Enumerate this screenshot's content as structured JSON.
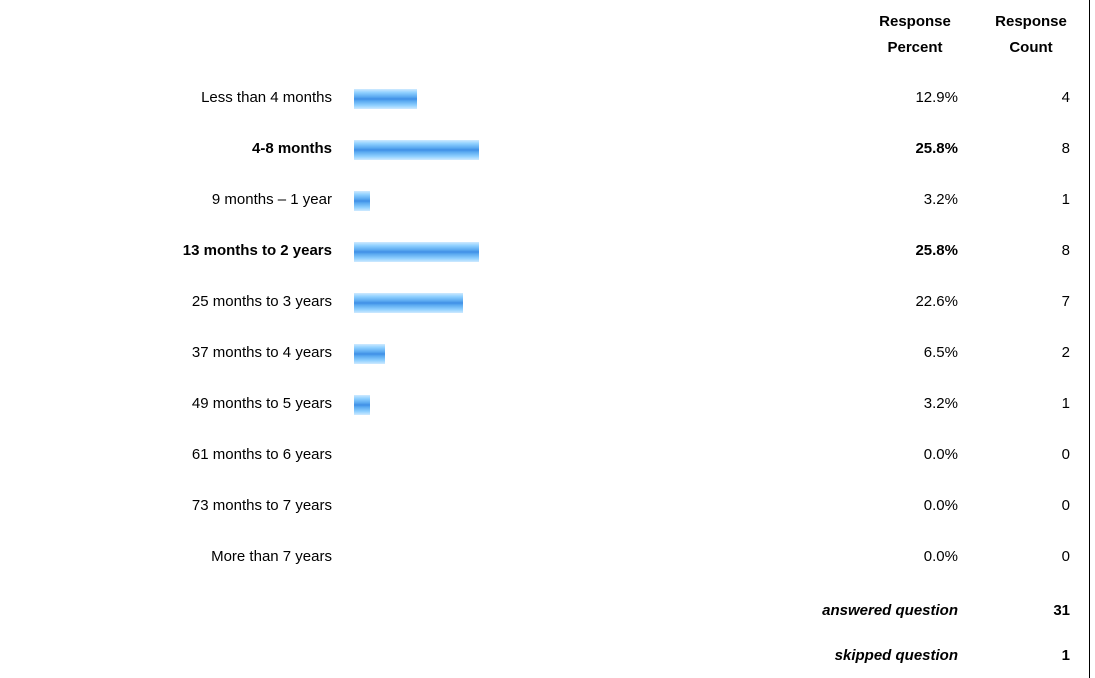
{
  "headers": {
    "percent": "Response Percent",
    "count": "Response Count"
  },
  "chart_data": {
    "type": "bar",
    "orientation": "horizontal",
    "xlim": [
      0,
      100
    ],
    "categories": [
      "Less than 4 months",
      "4-8 months",
      "9 months – 1 year",
      "13 months to 2 years",
      "25 months to 3 years",
      "37 months to 4 years",
      "49 months to 5 years",
      "61 months to 6 years",
      "73 months to 7 years",
      "More than 7 years"
    ],
    "values": [
      12.9,
      25.8,
      3.2,
      25.8,
      22.6,
      6.5,
      3.2,
      0.0,
      0.0,
      0.0
    ],
    "percent_labels": [
      "12.9%",
      "25.8%",
      "3.2%",
      "25.8%",
      "22.6%",
      "6.5%",
      "3.2%",
      "0.0%",
      "0.0%",
      "0.0%"
    ],
    "counts": [
      4,
      8,
      1,
      8,
      7,
      2,
      1,
      0,
      0,
      0
    ],
    "highlighted": [
      false,
      true,
      false,
      true,
      false,
      false,
      false,
      false,
      false,
      false
    ],
    "bar_color": "#5aa9f0"
  },
  "summary": {
    "answered_label": "answered question",
    "answered_value": "31",
    "skipped_label": "skipped question",
    "skipped_value": "1"
  }
}
